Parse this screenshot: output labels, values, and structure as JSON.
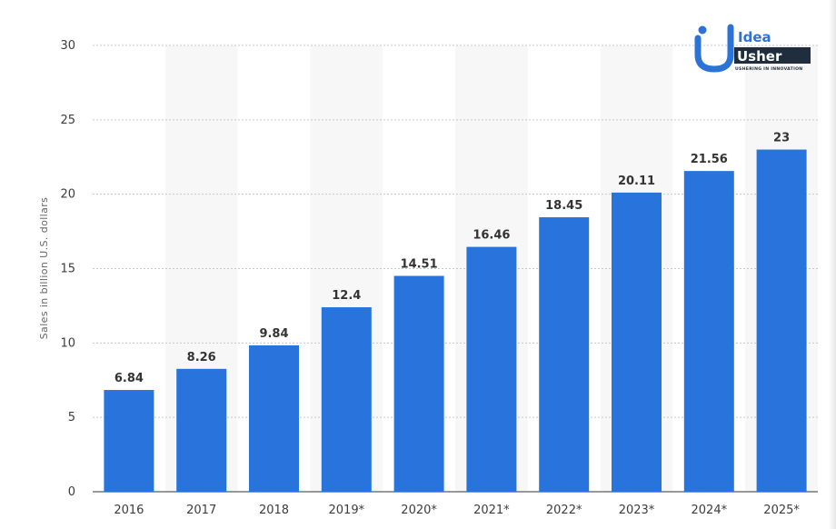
{
  "chart_data": {
    "type": "bar",
    "categories": [
      "2016",
      "2017",
      "2018",
      "2019*",
      "2020*",
      "2021*",
      "2022*",
      "2023*",
      "2024*",
      "2025*"
    ],
    "values": [
      6.84,
      8.26,
      9.84,
      12.4,
      14.51,
      16.46,
      18.45,
      20.11,
      21.56,
      23
    ],
    "value_labels": [
      "6.84",
      "8.26",
      "9.84",
      "12.4",
      "14.51",
      "16.46",
      "18.45",
      "20.11",
      "21.56",
      "23"
    ],
    "title": "",
    "xlabel": "",
    "ylabel": "Sales in billion U.S. dollars",
    "ylim": [
      0,
      30
    ],
    "yticks": [
      0,
      5,
      10,
      15,
      20,
      25,
      30
    ],
    "grid": true,
    "bar_color": "#2874dc",
    "stripe_color": "#f7f7f7",
    "grid_color": "#c8c8c8"
  },
  "logo": {
    "idea": "Idea",
    "usher": "Usher",
    "tagline": "USHERING IN INNOVATION",
    "primary_color": "#2b73d6",
    "dark_color": "#1f2d3d"
  }
}
